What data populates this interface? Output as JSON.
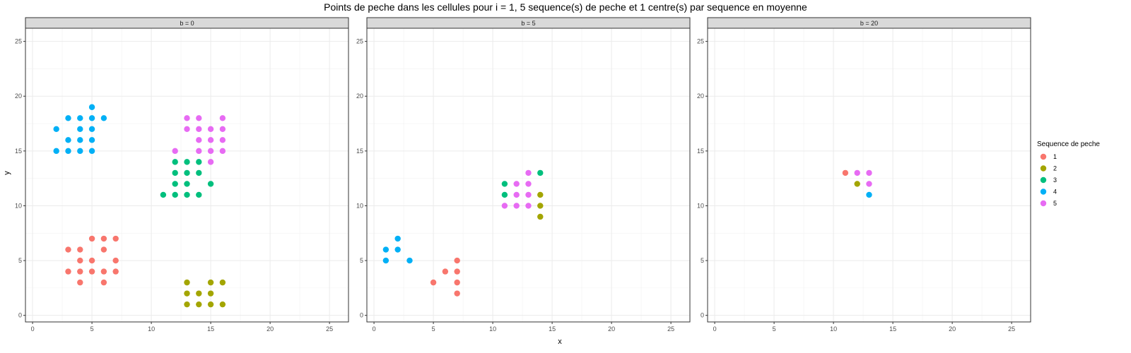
{
  "chart_data": {
    "type": "scatter",
    "title": "Points de peche dans les cellules pour i = 1, 5 sequence(s) de peche et 1 centre(s) par sequence en moyenne",
    "xlabel": "x",
    "ylabel": "y",
    "xlim": [
      -0.6,
      26.6
    ],
    "ylim": [
      -0.6,
      26.2
    ],
    "xticks": [
      0,
      5,
      10,
      15,
      20,
      25
    ],
    "yticks": [
      0,
      5,
      10,
      15,
      20,
      25
    ],
    "grid": true,
    "legend": {
      "title": "Sequence de peche",
      "placement": "right",
      "entries": [
        {
          "label": "1",
          "color": "#F8766D"
        },
        {
          "label": "2",
          "color": "#A3A500"
        },
        {
          "label": "3",
          "color": "#00BF7D"
        },
        {
          "label": "4",
          "color": "#00B0F6"
        },
        {
          "label": "5",
          "color": "#E76BF3"
        }
      ]
    },
    "panels": [
      {
        "label": "b = 0",
        "series": [
          {
            "name": "1",
            "color": "#F8766D",
            "points": [
              [
                3,
                6
              ],
              [
                3,
                4
              ],
              [
                4,
                6
              ],
              [
                4,
                5
              ],
              [
                4,
                4
              ],
              [
                4,
                3
              ],
              [
                5,
                7
              ],
              [
                5,
                5
              ],
              [
                5,
                4
              ],
              [
                6,
                7
              ],
              [
                6,
                6
              ],
              [
                6,
                4
              ],
              [
                6,
                3
              ],
              [
                7,
                7
              ],
              [
                7,
                5
              ],
              [
                7,
                4
              ]
            ]
          },
          {
            "name": "2",
            "color": "#A3A500",
            "points": [
              [
                13,
                3
              ],
              [
                13,
                2
              ],
              [
                13,
                1
              ],
              [
                14,
                2
              ],
              [
                14,
                1
              ],
              [
                15,
                3
              ],
              [
                15,
                2
              ],
              [
                15,
                1
              ],
              [
                16,
                3
              ],
              [
                16,
                1
              ]
            ]
          },
          {
            "name": "3",
            "color": "#00BF7D",
            "points": [
              [
                11,
                11
              ],
              [
                12,
                14
              ],
              [
                12,
                13
              ],
              [
                12,
                12
              ],
              [
                12,
                11
              ],
              [
                13,
                14
              ],
              [
                13,
                13
              ],
              [
                13,
                12
              ],
              [
                13,
                11
              ],
              [
                14,
                14
              ],
              [
                14,
                13
              ],
              [
                14,
                11
              ],
              [
                15,
                12
              ]
            ]
          },
          {
            "name": "4",
            "color": "#00B0F6",
            "points": [
              [
                2,
                17
              ],
              [
                2,
                15
              ],
              [
                3,
                18
              ],
              [
                3,
                16
              ],
              [
                3,
                15
              ],
              [
                4,
                18
              ],
              [
                4,
                17
              ],
              [
                4,
                16
              ],
              [
                4,
                15
              ],
              [
                5,
                19
              ],
              [
                5,
                18
              ],
              [
                5,
                17
              ],
              [
                5,
                16
              ],
              [
                5,
                15
              ],
              [
                6,
                18
              ]
            ]
          },
          {
            "name": "5",
            "color": "#E76BF3",
            "points": [
              [
                12,
                15
              ],
              [
                13,
                18
              ],
              [
                13,
                17
              ],
              [
                14,
                18
              ],
              [
                14,
                17
              ],
              [
                14,
                16
              ],
              [
                14,
                15
              ],
              [
                15,
                17
              ],
              [
                15,
                16
              ],
              [
                15,
                15
              ],
              [
                15,
                14
              ],
              [
                16,
                18
              ],
              [
                16,
                17
              ],
              [
                16,
                16
              ],
              [
                16,
                15
              ]
            ]
          }
        ]
      },
      {
        "label": "b = 5",
        "series": [
          {
            "name": "1",
            "color": "#F8766D",
            "points": [
              [
                5,
                3
              ],
              [
                6,
                4
              ],
              [
                7,
                5
              ],
              [
                7,
                4
              ],
              [
                7,
                3
              ],
              [
                7,
                2
              ]
            ]
          },
          {
            "name": "2",
            "color": "#A3A500",
            "points": [
              [
                14,
                11
              ],
              [
                14,
                10
              ],
              [
                14,
                9
              ]
            ]
          },
          {
            "name": "3",
            "color": "#00BF7D",
            "points": [
              [
                11,
                12
              ],
              [
                11,
                11
              ],
              [
                14,
                13
              ]
            ]
          },
          {
            "name": "4",
            "color": "#00B0F6",
            "points": [
              [
                1,
                6
              ],
              [
                1,
                5
              ],
              [
                2,
                7
              ],
              [
                2,
                6
              ],
              [
                3,
                5
              ]
            ]
          },
          {
            "name": "5",
            "color": "#E76BF3",
            "points": [
              [
                11,
                10
              ],
              [
                12,
                12
              ],
              [
                12,
                11
              ],
              [
                12,
                10
              ],
              [
                13,
                13
              ],
              [
                13,
                12
              ],
              [
                13,
                11
              ],
              [
                13,
                10
              ]
            ]
          }
        ]
      },
      {
        "label": "b = 20",
        "series": [
          {
            "name": "1",
            "color": "#F8766D",
            "points": [
              [
                11,
                13
              ]
            ]
          },
          {
            "name": "2",
            "color": "#A3A500",
            "points": [
              [
                12,
                12
              ]
            ]
          },
          {
            "name": "3",
            "color": "#00BF7D",
            "points": []
          },
          {
            "name": "4",
            "color": "#00B0F6",
            "points": [
              [
                13,
                11
              ]
            ]
          },
          {
            "name": "5",
            "color": "#E76BF3",
            "points": [
              [
                12,
                13
              ],
              [
                13,
                13
              ],
              [
                13,
                12
              ]
            ]
          }
        ]
      }
    ]
  }
}
